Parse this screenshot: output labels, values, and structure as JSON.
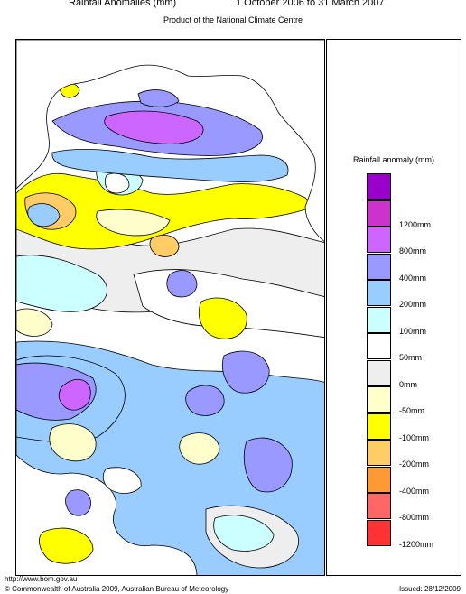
{
  "header": {
    "title": "Rainfall Anomalies (mm)",
    "period": "1 October 2006 to 31 March 2007",
    "subtitle": "Product of the National Climate Centre"
  },
  "legend": {
    "title": "Rainfall anomaly (mm)",
    "bins": [
      {
        "color": "#9900cc",
        "label": ""
      },
      {
        "color": "#cc33cc",
        "label": "1200mm"
      },
      {
        "color": "#cc66ff",
        "label": "800mm"
      },
      {
        "color": "#9999ff",
        "label": "400mm"
      },
      {
        "color": "#99ccff",
        "label": "200mm"
      },
      {
        "color": "#ccffff",
        "label": "100mm"
      },
      {
        "color": "#ffffff",
        "label": "50mm"
      },
      {
        "color": "#eeeeee",
        "label": "0mm"
      },
      {
        "color": "#ffffcc",
        "label": "-50mm"
      },
      {
        "color": "#ffff00",
        "label": "-100mm"
      },
      {
        "color": "#ffcc66",
        "label": "-200mm"
      },
      {
        "color": "#ff9933",
        "label": "-400mm"
      },
      {
        "color": "#ff6666",
        "label": "-800mm"
      },
      {
        "color": "#ff3333",
        "label": "-1200mm"
      }
    ]
  },
  "footer": {
    "url": "http://www.bom.gov.au",
    "copyright": "© Commonwealth of Australia 2009, Australian Bureau of Meteorology",
    "issued": "Issued: 28/12/2009"
  }
}
